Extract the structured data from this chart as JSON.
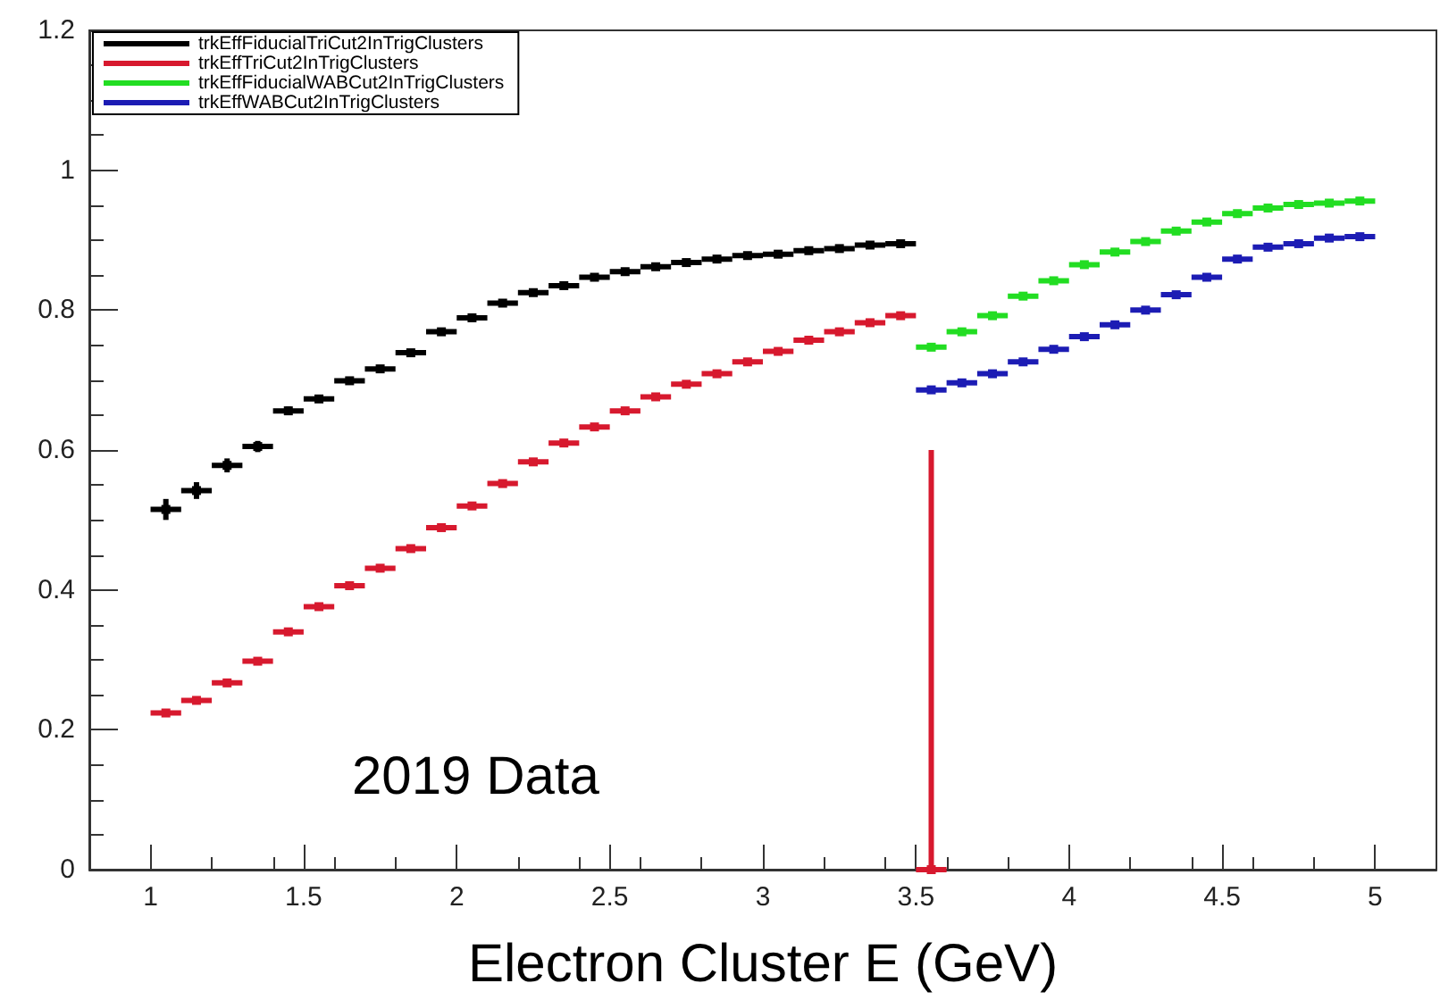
{
  "chart_data": {
    "type": "scatter",
    "xlabel": "Electron Cluster E (GeV)",
    "annotations": [
      "2019 Data"
    ],
    "xlim": [
      0.8,
      5.2
    ],
    "xticks": [
      1,
      1.5,
      2,
      2.5,
      3,
      3.5,
      4,
      4.5,
      5
    ],
    "ylim": [
      0,
      1.2
    ],
    "yticks": [
      0,
      0.2,
      0.4,
      0.6,
      0.8,
      1,
      1.2
    ],
    "grid": false,
    "legend": "top left",
    "marker": "square",
    "series": [
      {
        "name": "trkEffFiducialTriCut2InTrigClusters",
        "color": "#000000",
        "x": [
          1.05,
          1.15,
          1.25,
          1.35,
          1.45,
          1.55,
          1.65,
          1.75,
          1.85,
          1.95,
          2.05,
          2.15,
          2.25,
          2.35,
          2.45,
          2.55,
          2.65,
          2.75,
          2.85,
          2.95,
          3.05,
          3.15,
          3.25,
          3.35,
          3.45
        ],
        "values": [
          0.515,
          0.542,
          0.578,
          0.605,
          0.656,
          0.673,
          0.699,
          0.716,
          0.739,
          0.769,
          0.789,
          0.81,
          0.825,
          0.835,
          0.847,
          0.855,
          0.862,
          0.868,
          0.873,
          0.878,
          0.88,
          0.885,
          0.888,
          0.893,
          0.895
        ],
        "errors": [
          0.015,
          0.012,
          0.01,
          0.008,
          0.006,
          0.005,
          null,
          null,
          null,
          null,
          null,
          null,
          null,
          null,
          null,
          null,
          null,
          null,
          null,
          null,
          null,
          null,
          null,
          null,
          null
        ],
        "xerrors": [
          0.05,
          0.05,
          0.05,
          0.05,
          0.05,
          0.05,
          0.05,
          0.05,
          0.05,
          0.05,
          0.05,
          0.05,
          0.05,
          0.05,
          0.05,
          0.05,
          0.05,
          0.05,
          0.05,
          0.05,
          0.05,
          0.05,
          0.05,
          0.05,
          0.05
        ]
      },
      {
        "name": "trkEffTriCut2InTrigClusters",
        "color": "#d7192e",
        "x": [
          1.05,
          1.15,
          1.25,
          1.35,
          1.45,
          1.55,
          1.65,
          1.75,
          1.85,
          1.95,
          2.05,
          2.15,
          2.25,
          2.35,
          2.45,
          2.55,
          2.65,
          2.75,
          2.85,
          2.95,
          3.05,
          3.15,
          3.25,
          3.35,
          3.45,
          3.55
        ],
        "values": [
          0.224,
          0.242,
          0.267,
          0.298,
          0.34,
          0.376,
          0.406,
          0.431,
          0.459,
          0.489,
          0.52,
          0.552,
          0.583,
          0.61,
          0.633,
          0.656,
          0.676,
          0.694,
          0.709,
          0.726,
          0.741,
          0.757,
          0.769,
          0.782,
          0.792,
          0
        ],
        "errors": [
          null,
          null,
          null,
          null,
          null,
          null,
          null,
          null,
          null,
          null,
          null,
          null,
          null,
          null,
          null,
          null,
          null,
          null,
          null,
          null,
          null,
          null,
          null,
          null,
          null,
          [
            0,
            0.6
          ]
        ],
        "xerrors": [
          0.05,
          0.05,
          0.05,
          0.05,
          0.05,
          0.05,
          0.05,
          0.05,
          0.05,
          0.05,
          0.05,
          0.05,
          0.05,
          0.05,
          0.05,
          0.05,
          0.05,
          0.05,
          0.05,
          0.05,
          0.05,
          0.05,
          0.05,
          0.05,
          0.05,
          0.05
        ]
      },
      {
        "name": "trkEffFiducialWABCut2InTrigClusters",
        "color": "#22dd22",
        "x": [
          3.55,
          3.65,
          3.75,
          3.85,
          3.95,
          4.05,
          4.15,
          4.25,
          4.35,
          4.45,
          4.55,
          4.65,
          4.75,
          4.85,
          4.95
        ],
        "values": [
          0.747,
          0.769,
          0.792,
          0.82,
          0.842,
          0.865,
          0.883,
          0.898,
          0.913,
          0.926,
          0.938,
          0.946,
          0.951,
          0.953,
          0.956
        ],
        "xerrors": [
          0.05,
          0.05,
          0.05,
          0.05,
          0.05,
          0.05,
          0.05,
          0.05,
          0.05,
          0.05,
          0.05,
          0.05,
          0.05,
          0.05,
          0.05
        ]
      },
      {
        "name": "trkEffWABCut2InTrigClusters",
        "color": "#1c1cb4",
        "x": [
          3.55,
          3.65,
          3.75,
          3.85,
          3.95,
          4.05,
          4.15,
          4.25,
          4.35,
          4.45,
          4.55,
          4.65,
          4.75,
          4.85,
          4.95
        ],
        "values": [
          0.686,
          0.696,
          0.709,
          0.726,
          0.744,
          0.762,
          0.779,
          0.8,
          0.822,
          0.847,
          0.873,
          0.89,
          0.895,
          0.903,
          0.905
        ],
        "xerrors": [
          0.05,
          0.05,
          0.05,
          0.05,
          0.05,
          0.05,
          0.05,
          0.05,
          0.05,
          0.05,
          0.05,
          0.05,
          0.05,
          0.05,
          0.05
        ]
      }
    ]
  }
}
